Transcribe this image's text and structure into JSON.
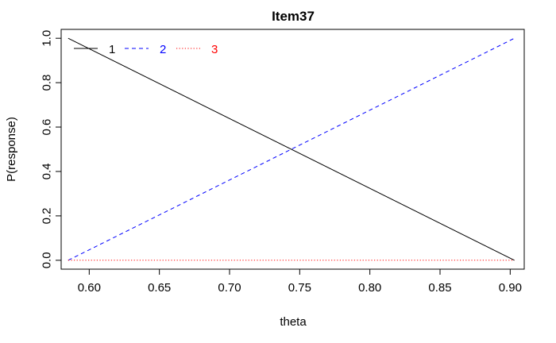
{
  "chart_data": {
    "type": "line",
    "title": "Item37",
    "xlabel": "theta",
    "ylabel": "P(response)",
    "xlim": [
      0.58,
      0.91
    ],
    "ylim": [
      -0.04,
      1.04
    ],
    "x_ticks": [
      "0.60",
      "0.65",
      "0.70",
      "0.75",
      "0.80",
      "0.85",
      "0.90"
    ],
    "y_ticks": [
      "0.0",
      "0.2",
      "0.4",
      "0.6",
      "0.8",
      "1.0"
    ],
    "grid": false,
    "legend_position": "top-left",
    "series": [
      {
        "name": "1",
        "color": "#000000",
        "line_style": "solid",
        "x": [
          0.585,
          0.903
        ],
        "y": [
          1.0,
          0.0
        ]
      },
      {
        "name": "2",
        "color": "#0000ff",
        "line_style": "dashed",
        "x": [
          0.585,
          0.903
        ],
        "y": [
          0.0,
          1.0
        ]
      },
      {
        "name": "3",
        "color": "#ff0000",
        "line_style": "dotted",
        "x": [
          0.585,
          0.903
        ],
        "y": [
          0.0,
          0.0
        ]
      }
    ]
  }
}
